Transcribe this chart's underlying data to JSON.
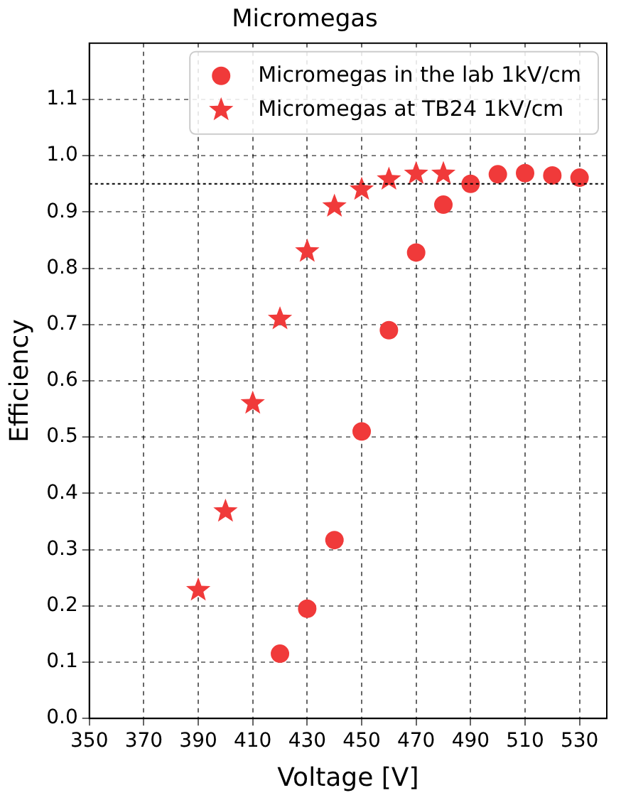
{
  "chart_data": {
    "type": "scatter",
    "title": "Micromegas",
    "xlabel": "Voltage [V]",
    "ylabel": "Efficiency",
    "xlim": [
      350,
      540
    ],
    "xticks": [
      350,
      370,
      390,
      410,
      430,
      450,
      470,
      490,
      510,
      530
    ],
    "ylim": [
      0,
      1.2
    ],
    "yticks": [
      {
        "value": 0,
        "label": "0.0"
      },
      {
        "value": 0.1,
        "label": "0.1"
      },
      {
        "value": 0.2,
        "label": "0.2"
      },
      {
        "value": 0.3,
        "label": "0.3"
      },
      {
        "value": 0.4,
        "label": "0.4"
      },
      {
        "value": 0.5,
        "label": "0.5"
      },
      {
        "value": 0.6,
        "label": "0.6"
      },
      {
        "value": 0.7,
        "label": "0.7"
      },
      {
        "value": 0.8,
        "label": "0.8"
      },
      {
        "value": 0.9,
        "label": "0.9"
      },
      {
        "value": 1,
        "label": "1.0"
      },
      {
        "value": 1.1,
        "label": "1.1"
      }
    ],
    "grid": true,
    "legend": "top right",
    "ref_lines": [
      {
        "axis": "y",
        "value": 0.95,
        "line_style": "dotted",
        "color": "#000000"
      }
    ],
    "series": [
      {
        "name": "Micromegas in the lab 1kV/cm",
        "color": "#f03a3a",
        "marker": "circle",
        "x": [
          420,
          430,
          440,
          450,
          460,
          470,
          480,
          490,
          500,
          510,
          520,
          530
        ],
        "values": [
          0.115,
          0.195,
          0.317,
          0.51,
          0.69,
          0.828,
          0.913,
          0.95,
          0.967,
          0.969,
          0.965,
          0.961
        ]
      },
      {
        "name": "Micromegas at TB24 1kV/cm",
        "color": "#f03a3a",
        "marker": "star",
        "x": [
          390,
          400,
          410,
          420,
          430,
          440,
          450,
          460,
          470,
          480
        ],
        "values": [
          0.228,
          0.368,
          0.56,
          0.71,
          0.83,
          0.91,
          0.94,
          0.958,
          0.968,
          0.968
        ]
      }
    ]
  }
}
